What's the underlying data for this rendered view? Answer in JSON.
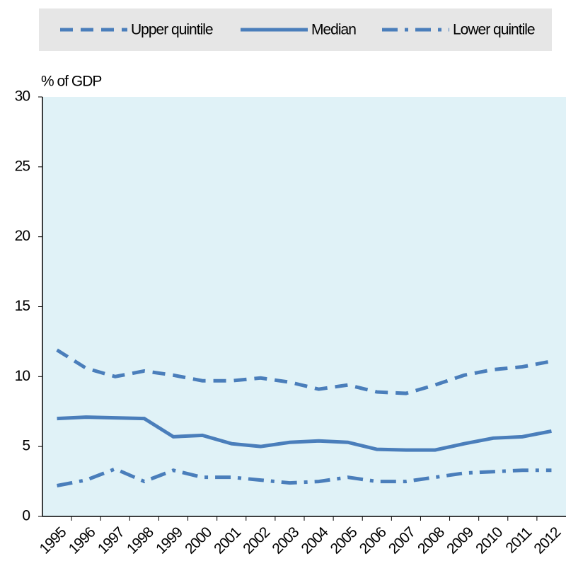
{
  "chart_data": {
    "type": "line",
    "y_label": "% of GDP",
    "categories": [
      "1995",
      "1996",
      "1997",
      "1998",
      "1999",
      "2000",
      "2001",
      "2002",
      "2003",
      "2004",
      "2005",
      "2006",
      "2007",
      "2008",
      "2009",
      "2010",
      "2011",
      "2012"
    ],
    "series": [
      {
        "name": "Upper quintile",
        "color": "#4a7ebb",
        "dash": "dashed",
        "values": [
          11.9,
          10.6,
          10.0,
          10.4,
          10.1,
          9.7,
          9.7,
          9.9,
          9.6,
          9.1,
          9.4,
          8.9,
          8.8,
          9.4,
          10.1,
          10.5,
          10.7,
          11.1
        ]
      },
      {
        "name": "Median",
        "color": "#4a7ebb",
        "dash": "solid",
        "values": [
          7.0,
          7.1,
          7.05,
          7.0,
          5.7,
          5.8,
          5.2,
          5.0,
          5.3,
          5.4,
          5.3,
          4.8,
          4.75,
          4.75,
          5.2,
          5.6,
          5.7,
          6.1
        ]
      },
      {
        "name": "Lower quintile",
        "color": "#4a7ebb",
        "dash": "dashdot",
        "values": [
          2.2,
          2.6,
          3.4,
          2.5,
          3.3,
          2.8,
          2.8,
          2.6,
          2.4,
          2.5,
          2.8,
          2.5,
          2.5,
          2.8,
          3.1,
          3.2,
          3.3,
          3.3
        ]
      }
    ],
    "ylim": [
      0,
      30
    ],
    "yticks": [
      0,
      5,
      10,
      15,
      20,
      25,
      30
    ],
    "background": "#e0f2f7"
  }
}
